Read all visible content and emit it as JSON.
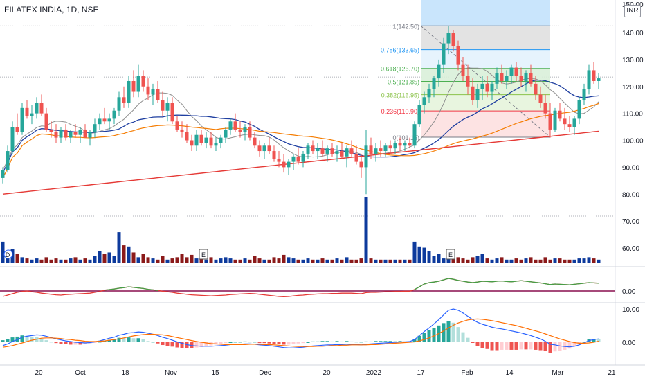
{
  "chart_data": {
    "type": "candlestick",
    "title": "FILATEX INDIA, 1D, NSE",
    "currency": "INR",
    "y_ticks": [
      "140.00",
      "130.00",
      "120.00",
      "110.00",
      "100.00",
      "90.00",
      "80.00",
      "70.00",
      "60.00"
    ],
    "y_top_partial": "150.00",
    "x_ticks": [
      "20",
      "Oct",
      "18",
      "Nov",
      "15",
      "Dec",
      "20",
      "2022",
      "17",
      "Feb",
      "14",
      "Mar",
      "21"
    ],
    "price_range": [
      53,
      152
    ],
    "fib_levels": [
      {
        "label": "1(142.50)",
        "value": 142.5,
        "color": "#787b86"
      },
      {
        "label": "0.786(133.65)",
        "value": 133.65,
        "color": "#2196f3"
      },
      {
        "label": "0.618(126.70)",
        "value": 126.7,
        "color": "#4caf50"
      },
      {
        "label": "0.5(121.85)",
        "value": 121.85,
        "color": "#4caf50"
      },
      {
        "label": "0.382(116.95)",
        "value": 116.95,
        "color": "#8bc34a"
      },
      {
        "label": "0.236(110.90)",
        "value": 110.9,
        "color": "#f23645"
      },
      {
        "label": "0(101.15)",
        "value": 101.15,
        "color": "#787b86"
      }
    ],
    "event_markers": [
      "D",
      "E",
      "E"
    ],
    "oscillator1_ticks": [
      "0.00"
    ],
    "oscillator2_ticks": [
      "10.00",
      "0.00"
    ],
    "candles": [
      [
        86,
        90,
        84,
        89
      ],
      [
        89,
        98,
        88,
        96
      ],
      [
        96,
        107,
        95,
        105
      ],
      [
        105,
        110,
        102,
        103
      ],
      [
        103,
        114,
        102,
        112
      ],
      [
        112,
        115,
        108,
        109
      ],
      [
        109,
        113,
        106,
        110
      ],
      [
        110,
        116,
        108,
        114
      ],
      [
        114,
        117,
        109,
        110
      ],
      [
        110,
        112,
        103,
        104
      ],
      [
        104,
        107,
        101,
        103
      ],
      [
        103,
        106,
        99,
        101
      ],
      [
        101,
        105,
        99,
        104
      ],
      [
        104,
        106,
        100,
        101
      ],
      [
        101,
        104,
        99,
        103
      ],
      [
        103,
        106,
        101,
        102
      ],
      [
        102,
        105,
        99,
        104
      ],
      [
        104,
        106,
        101,
        101
      ],
      [
        101,
        104,
        98,
        103
      ],
      [
        103,
        108,
        101,
        106
      ],
      [
        106,
        110,
        104,
        108
      ],
      [
        108,
        112,
        106,
        107
      ],
      [
        107,
        110,
        104,
        108
      ],
      [
        108,
        112,
        106,
        111
      ],
      [
        111,
        118,
        109,
        116
      ],
      [
        116,
        120,
        112,
        114
      ],
      [
        114,
        124,
        112,
        122
      ],
      [
        122,
        126,
        116,
        118
      ],
      [
        118,
        128,
        116,
        124
      ],
      [
        124,
        126,
        118,
        120
      ],
      [
        120,
        123,
        115,
        117
      ],
      [
        117,
        121,
        113,
        119
      ],
      [
        119,
        122,
        114,
        115
      ],
      [
        115,
        118,
        109,
        111
      ],
      [
        111,
        116,
        107,
        114
      ],
      [
        114,
        116,
        106,
        107
      ],
      [
        107,
        109,
        103,
        104
      ],
      [
        104,
        107,
        101,
        103
      ],
      [
        103,
        106,
        99,
        100
      ],
      [
        100,
        102,
        96,
        98
      ],
      [
        98,
        104,
        96,
        102
      ],
      [
        102,
        104,
        98,
        99
      ],
      [
        99,
        103,
        97,
        101
      ],
      [
        101,
        103,
        97,
        98
      ],
      [
        98,
        101,
        96,
        99
      ],
      [
        99,
        102,
        97,
        101
      ],
      [
        101,
        105,
        99,
        104
      ],
      [
        104,
        108,
        102,
        107
      ],
      [
        107,
        110,
        103,
        104
      ],
      [
        104,
        107,
        101,
        103
      ],
      [
        103,
        106,
        100,
        105
      ],
      [
        105,
        107,
        100,
        101
      ],
      [
        101,
        103,
        97,
        98
      ],
      [
        98,
        100,
        94,
        96
      ],
      [
        96,
        99,
        93,
        98
      ],
      [
        98,
        101,
        95,
        96
      ],
      [
        96,
        98,
        92,
        93
      ],
      [
        93,
        96,
        90,
        92
      ],
      [
        92,
        95,
        88,
        90
      ],
      [
        90,
        93,
        87,
        92
      ],
      [
        92,
        95,
        89,
        94
      ],
      [
        94,
        97,
        91,
        92
      ],
      [
        92,
        96,
        90,
        95
      ],
      [
        95,
        99,
        93,
        98
      ],
      [
        98,
        100,
        95,
        96
      ],
      [
        96,
        99,
        93,
        97
      ],
      [
        97,
        100,
        94,
        95
      ],
      [
        95,
        98,
        92,
        97
      ],
      [
        97,
        99,
        94,
        95
      ],
      [
        95,
        98,
        92,
        96
      ],
      [
        96,
        99,
        93,
        94
      ],
      [
        94,
        98,
        90,
        97
      ],
      [
        97,
        100,
        94,
        95
      ],
      [
        95,
        98,
        91,
        92
      ],
      [
        92,
        95,
        86,
        90
      ],
      [
        90,
        104,
        80,
        98
      ],
      [
        98,
        101,
        93,
        95
      ],
      [
        95,
        99,
        92,
        97
      ],
      [
        97,
        100,
        94,
        96
      ],
      [
        96,
        99,
        94,
        98
      ],
      [
        98,
        100,
        95,
        97
      ],
      [
        97,
        100,
        95,
        99
      ],
      [
        99,
        101,
        96,
        98
      ],
      [
        98,
        100,
        96,
        99
      ],
      [
        99,
        101,
        97,
        98
      ],
      [
        98,
        107,
        97,
        106
      ],
      [
        106,
        115,
        105,
        113
      ],
      [
        113,
        118,
        110,
        116
      ],
      [
        116,
        121,
        114,
        119
      ],
      [
        119,
        124,
        116,
        123
      ],
      [
        123,
        130,
        120,
        128
      ],
      [
        128,
        138,
        125,
        136
      ],
      [
        136,
        142.5,
        132,
        140
      ],
      [
        140,
        141,
        133,
        135
      ],
      [
        135,
        137,
        126,
        128
      ],
      [
        128,
        131,
        122,
        124
      ],
      [
        124,
        128,
        117,
        120
      ],
      [
        120,
        123,
        113,
        115
      ],
      [
        115,
        121,
        112,
        119
      ],
      [
        119,
        124,
        115,
        121
      ],
      [
        121,
        124,
        116,
        118
      ],
      [
        118,
        122,
        115,
        121
      ],
      [
        121,
        127,
        119,
        125
      ],
      [
        125,
        128,
        121,
        122
      ],
      [
        122,
        126,
        119,
        124
      ],
      [
        124,
        128,
        121,
        127
      ],
      [
        127,
        129,
        122,
        124
      ],
      [
        124,
        127,
        120,
        122
      ],
      [
        122,
        126,
        118,
        125
      ],
      [
        125,
        128,
        120,
        121
      ],
      [
        121,
        124,
        115,
        117
      ],
      [
        117,
        120,
        112,
        114
      ],
      [
        114,
        117,
        108,
        110
      ],
      [
        110,
        114,
        101,
        104
      ],
      [
        104,
        112,
        103,
        111
      ],
      [
        111,
        114,
        107,
        108
      ],
      [
        108,
        112,
        104,
        106
      ],
      [
        106,
        109,
        103,
        105
      ],
      [
        105,
        109,
        102,
        108
      ],
      [
        108,
        116,
        106,
        115
      ],
      [
        115,
        121,
        113,
        119
      ],
      [
        119,
        128,
        117,
        126
      ],
      [
        126,
        129,
        121,
        122
      ],
      [
        122,
        125,
        119,
        123
      ]
    ],
    "volume": [
      18,
      6,
      12,
      8,
      5,
      4,
      3,
      4,
      3,
      5,
      3,
      4,
      3,
      3,
      4,
      5,
      3,
      4,
      3,
      6,
      10,
      8,
      9,
      6,
      26,
      15,
      14,
      9,
      5,
      8,
      5,
      4,
      3,
      6,
      3,
      4,
      5,
      8,
      5,
      7,
      4,
      4,
      3,
      5,
      3,
      4,
      5,
      4,
      3,
      3,
      4,
      3,
      6,
      4,
      3,
      3,
      5,
      4,
      7,
      5,
      4,
      3,
      3,
      4,
      3,
      3,
      4,
      3,
      3,
      4,
      3,
      5,
      3,
      3,
      4,
      55,
      4,
      3,
      3,
      3,
      3,
      3,
      3,
      3,
      3,
      18,
      14,
      13,
      10,
      6,
      8,
      4,
      6,
      5,
      5,
      4,
      3,
      5,
      6,
      8,
      4,
      3,
      4,
      5,
      3,
      3,
      4,
      3,
      4,
      5,
      3,
      3,
      5,
      3,
      4,
      4,
      3,
      3,
      3,
      4,
      4,
      5,
      4,
      3
    ],
    "osc1": [
      -2,
      -1.5,
      -1,
      -0.5,
      -0.2,
      0,
      -0.3,
      -0.5,
      -0.8,
      -1,
      -1.2,
      -1.4,
      -1.5,
      -1.3,
      -1.2,
      -1.1,
      -1,
      -0.9,
      -0.8,
      -0.5,
      -0.2,
      0.3,
      0.5,
      0.7,
      1,
      1.2,
      1.5,
      1.3,
      1.1,
      0.9,
      0.6,
      0.4,
      0.2,
      -0.1,
      -0.3,
      -0.5,
      -0.8,
      -1,
      -1.2,
      -1.4,
      -1.5,
      -1.6,
      -1.7,
      -1.8,
      -1.7,
      -1.6,
      -1.5,
      -1.3,
      -1.2,
      -1.1,
      -1,
      -0.9,
      -1,
      -1.2,
      -1.4,
      -1.6,
      -1.8,
      -2,
      -2.1,
      -2,
      -1.8,
      -1.6,
      -1.5,
      -1.3,
      -1.2,
      -1.1,
      -1,
      -1,
      -0.9,
      -0.9,
      -0.8,
      -0.8,
      -0.8,
      -0.9,
      -1,
      -0.6,
      -0.5,
      -0.5,
      -0.4,
      -0.3,
      -0.3,
      -0.2,
      -0.2,
      -0.1,
      -0.1,
      0.5,
      1.5,
      2.5,
      3,
      3.2,
      3.5,
      4,
      4.5,
      4.2,
      3.8,
      3.5,
      3.2,
      3,
      3.2,
      3.5,
      3.4,
      3.3,
      3.5,
      3.6,
      3.4,
      3.3,
      3.5,
      3.7,
      3.5,
      3.3,
      3.1,
      2.9,
      2.6,
      2.3,
      2.5,
      2.4,
      2.3,
      2.2,
      2.4,
      2.6,
      2.8,
      3,
      2.9,
      2.8
    ],
    "macd": [
      -1,
      -0.5,
      0.2,
      0.8,
      1.5,
      1.8,
      2,
      2.2,
      2.1,
      1.8,
      1.4,
      1,
      0.7,
      0.4,
      0.2,
      0,
      -0.1,
      -0.2,
      -0.1,
      0.1,
      0.4,
      0.8,
      1.2,
      1.5,
      2.1,
      2.4,
      2.8,
      2.9,
      3.1,
      3,
      2.7,
      2.4,
      2,
      1.5,
      1.1,
      0.6,
      0.1,
      -0.3,
      -0.7,
      -1,
      -1.1,
      -1.2,
      -1.2,
      -1.2,
      -1.1,
      -1,
      -0.9,
      -0.7,
      -0.6,
      -0.6,
      -0.5,
      -0.5,
      -0.6,
      -0.8,
      -0.9,
      -1,
      -1.2,
      -1.4,
      -1.6,
      -1.7,
      -1.7,
      -1.6,
      -1.5,
      -1.3,
      -1.1,
      -1,
      -0.9,
      -0.8,
      -0.8,
      -0.7,
      -0.7,
      -0.6,
      -0.6,
      -0.7,
      -0.8,
      -0.6,
      -0.5,
      -0.4,
      -0.3,
      -0.2,
      -0.1,
      0,
      0.1,
      0.1,
      0.2,
      0.8,
      2,
      3.2,
      4.3,
      5.5,
      6.8,
      8.2,
      9.6,
      10,
      9.6,
      8.8,
      7.8,
      6.8,
      6,
      5.4,
      5,
      4.5,
      4.2,
      4,
      3.7,
      3.4,
      3.1,
      2.8,
      2.4,
      2,
      1.5,
      1,
      0.3,
      -0.6,
      -0.8,
      -1.1,
      -1.3,
      -1.4,
      -1.2,
      -0.8,
      -0.2,
      0.5,
      0.8,
      1
    ],
    "signal": [
      -1.5,
      -1.3,
      -1,
      -0.6,
      -0.2,
      0.2,
      0.6,
      0.9,
      1.2,
      1.3,
      1.3,
      1.2,
      1.1,
      0.9,
      0.8,
      0.6,
      0.5,
      0.3,
      0.2,
      0.2,
      0.3,
      0.4,
      0.6,
      0.8,
      1,
      1.3,
      1.6,
      1.9,
      2.1,
      2.3,
      2.4,
      2.4,
      2.3,
      2.2,
      2,
      1.7,
      1.4,
      1.1,
      0.8,
      0.5,
      0.2,
      0,
      -0.2,
      -0.4,
      -0.5,
      -0.6,
      -0.7,
      -0.7,
      -0.7,
      -0.7,
      -0.7,
      -0.6,
      -0.6,
      -0.6,
      -0.7,
      -0.7,
      -0.8,
      -0.9,
      -1,
      -1.1,
      -1.2,
      -1.3,
      -1.3,
      -1.3,
      -1.3,
      -1.2,
      -1.2,
      -1.1,
      -1,
      -1,
      -0.9,
      -0.9,
      -0.8,
      -0.8,
      -0.8,
      -0.8,
      -0.7,
      -0.7,
      -0.6,
      -0.5,
      -0.4,
      -0.3,
      -0.2,
      -0.1,
      0,
      0.1,
      0.4,
      0.8,
      1.3,
      1.9,
      2.6,
      3.4,
      4.3,
      5.1,
      5.8,
      6.3,
      6.7,
      6.9,
      7,
      6.9,
      6.7,
      6.5,
      6.2,
      5.9,
      5.6,
      5.3,
      5,
      4.6,
      4.2,
      3.8,
      3.4,
      3,
      2.5,
      2,
      1.5,
      1,
      0.6,
      0.2,
      -0.1,
      -0.3,
      -0.3,
      -0.2,
      0,
      0.3
    ]
  }
}
